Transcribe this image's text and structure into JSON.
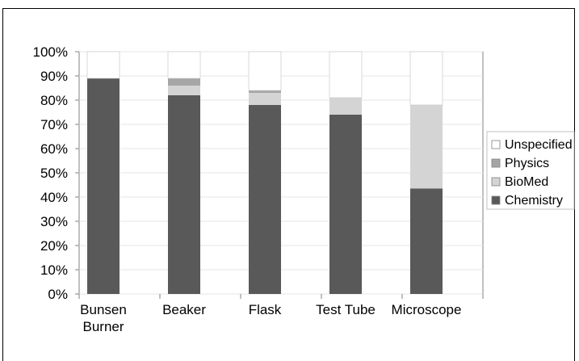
{
  "chart_data": {
    "type": "bar",
    "stacked": true,
    "normalized": true,
    "categories": [
      "Bunsen Burner",
      "Beaker",
      "Flask",
      "Test Tube",
      "Microscope"
    ],
    "category_lines": [
      [
        "Bunsen",
        "Burner"
      ],
      [
        "Beaker"
      ],
      [
        "Flask"
      ],
      [
        "Test Tube"
      ],
      [
        "Microscope"
      ]
    ],
    "series": [
      {
        "name": "Chemistry",
        "color": "#595959",
        "values": [
          89,
          82,
          78,
          74,
          43.5
        ]
      },
      {
        "name": "BioMed",
        "color": "#d4d4d4",
        "values": [
          0,
          4,
          5,
          7,
          34.5
        ]
      },
      {
        "name": "Physics",
        "color": "#a6a6a6",
        "values": [
          0,
          3,
          1,
          0,
          0
        ]
      },
      {
        "name": "Unspecified",
        "color": "#ffffff",
        "values": [
          11,
          11,
          16,
          19,
          22
        ]
      }
    ],
    "legend_order": [
      "Unspecified",
      "Physics",
      "BioMed",
      "Chemistry"
    ],
    "legend_position": "right",
    "ylim": [
      0,
      100
    ],
    "yticks": [
      "0%",
      "10%",
      "20%",
      "30%",
      "40%",
      "50%",
      "60%",
      "70%",
      "80%",
      "90%",
      "100%"
    ],
    "grid": true,
    "title": "",
    "xlabel": "",
    "ylabel": ""
  }
}
